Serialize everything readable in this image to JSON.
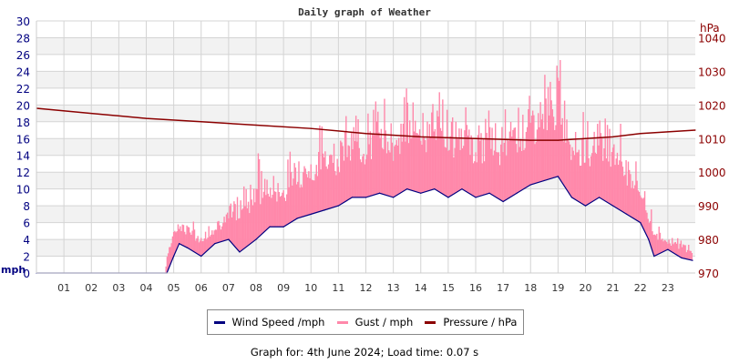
{
  "chart_data": {
    "type": "line",
    "title": "Daily graph of Weather",
    "xlabel": "",
    "ylabel": "mph",
    "y2label": "hPa",
    "ylim": [
      0,
      30
    ],
    "y2lim": [
      970,
      1045
    ],
    "y_ticks": [
      "0",
      "2",
      "4",
      "6",
      "8",
      "10",
      "12",
      "14",
      "16",
      "18",
      "20",
      "22",
      "24",
      "26",
      "28",
      "30"
    ],
    "y2_ticks": [
      "970",
      "980",
      "990",
      "1000",
      "1010",
      "1020",
      "1030",
      "1040"
    ],
    "x_ticks": [
      "01",
      "02",
      "03",
      "04",
      "05",
      "06",
      "07",
      "08",
      "09",
      "10",
      "11",
      "12",
      "13",
      "14",
      "15",
      "16",
      "17",
      "18",
      "19",
      "20",
      "21",
      "22",
      "23"
    ],
    "xlim": [
      0,
      24
    ],
    "grid": true,
    "legend_placement": "bottom",
    "series": [
      {
        "name": "Wind Speed /mph",
        "color": "#000080",
        "axis": "left",
        "x": [
          0,
          4.75,
          5,
          5.2,
          5.5,
          6,
          6.5,
          7,
          7.4,
          8,
          8.5,
          9,
          9.5,
          10,
          10.5,
          11,
          11.5,
          12,
          12.5,
          13,
          13.5,
          14,
          14.5,
          15,
          15.5,
          16,
          16.5,
          17,
          17.5,
          18,
          18.5,
          19,
          19.5,
          20,
          20.5,
          21,
          21.5,
          22,
          22.3,
          22.5,
          23,
          23.5,
          23.9
        ],
        "values": [
          0,
          0,
          2,
          3.5,
          3,
          2,
          3.5,
          4,
          2.5,
          4,
          5.5,
          5.5,
          6.5,
          7,
          7.5,
          8,
          9,
          9,
          9.5,
          9,
          10,
          9.5,
          10,
          9,
          10,
          9,
          9.5,
          8.5,
          9.5,
          10.5,
          11,
          11.5,
          9,
          8,
          9,
          8,
          7,
          6,
          4,
          2,
          2.8,
          1.8,
          1.5
        ]
      },
      {
        "name": "Gust / mph",
        "color": "#ff88aa",
        "axis": "left",
        "x": [
          0,
          4.7,
          4.75,
          5,
          5.5,
          6,
          6.5,
          7,
          7.5,
          8,
          8.5,
          9,
          9.5,
          10,
          10.5,
          11,
          11.5,
          12,
          12.5,
          13,
          13.5,
          14,
          14.5,
          15,
          15.5,
          16,
          16.5,
          17,
          17.5,
          18,
          18.5,
          19,
          19.5,
          20,
          20.5,
          21,
          21.5,
          22,
          22.5,
          23,
          23.5,
          23.9
        ],
        "values": [
          0,
          0,
          3.5,
          7,
          7,
          5,
          7,
          8,
          12,
          15,
          12,
          13,
          16,
          15,
          19,
          18,
          20,
          19,
          22,
          20,
          23,
          21,
          25,
          21,
          20,
          19,
          20,
          19,
          22,
          22,
          24,
          26.5,
          20,
          19,
          21,
          20,
          16,
          12,
          7,
          4.5,
          4,
          3.5
        ]
      },
      {
        "name": "Pressure / hPa",
        "color": "#8b0000",
        "axis": "right",
        "x": [
          0,
          2,
          4,
          6,
          8,
          10,
          12,
          14,
          16,
          18,
          19,
          20,
          21,
          22,
          23,
          24
        ],
        "values": [
          1019,
          1017.5,
          1016,
          1015,
          1014,
          1013,
          1011.5,
          1010.5,
          1010,
          1009.5,
          1009.5,
          1010,
          1010.5,
          1011.5,
          1012,
          1012.5
        ]
      }
    ]
  },
  "footer": "Graph for: 4th June 2024; Load time: 0.07 s"
}
